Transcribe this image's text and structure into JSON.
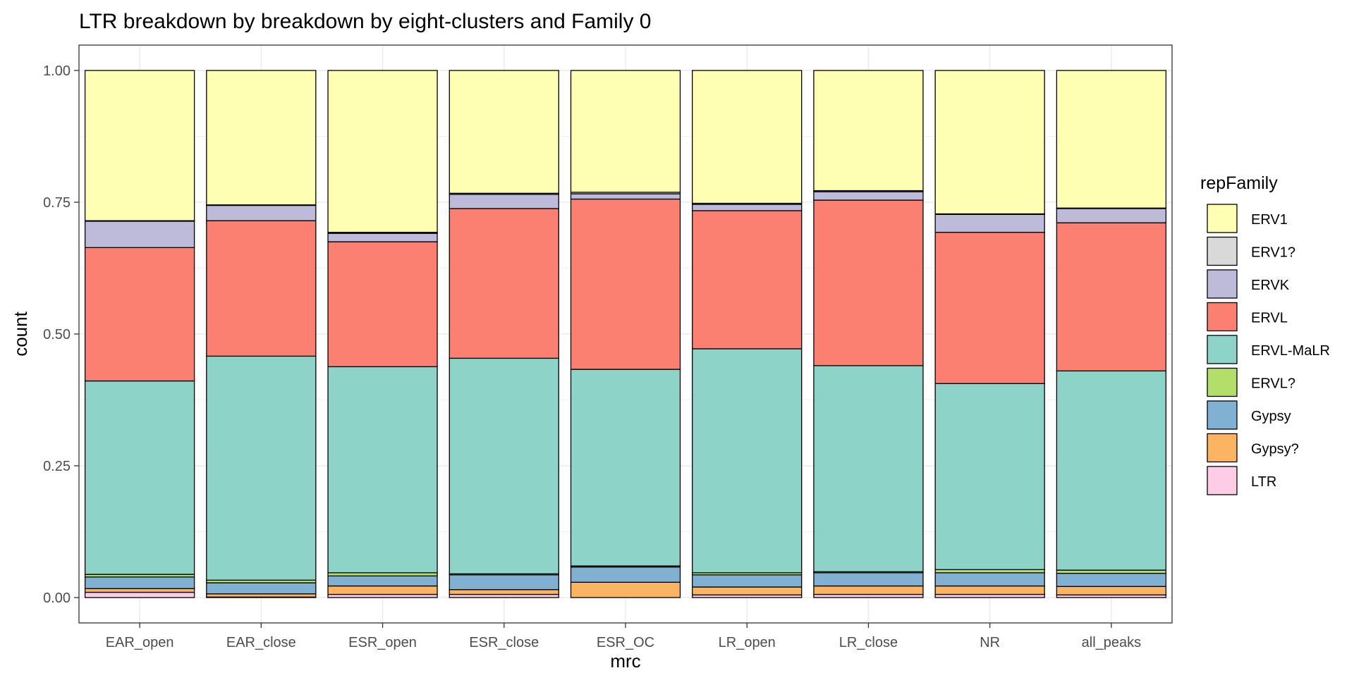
{
  "chart_data": {
    "type": "bar",
    "stacked": true,
    "title": "LTR breakdown by breakdown by eight-clusters and Family 0",
    "xlabel": "mrc",
    "ylabel": "count",
    "ylim": [
      0,
      1
    ],
    "yticks": [
      "0.00",
      "0.25",
      "0.50",
      "0.75",
      "1.00"
    ],
    "ytick_values": [
      0,
      0.25,
      0.5,
      0.75,
      1.0
    ],
    "categories": [
      "EAR_open",
      "EAR_close",
      "ESR_open",
      "ESR_close",
      "ESR_OC",
      "LR_open",
      "LR_close",
      "NR",
      "all_peaks"
    ],
    "grid": true,
    "legend": {
      "title": "repFamily",
      "placement": "right"
    },
    "stack_order_bottom_to_top": [
      "LTR",
      "Gypsy?",
      "Gypsy",
      "ERVL?",
      "ERVL-MaLR",
      "ERVL",
      "ERVK",
      "ERV1?",
      "ERV1"
    ],
    "series": [
      {
        "name": "ERV1",
        "color": "#FFFFB3",
        "values": [
          0.285,
          0.255,
          0.307,
          0.233,
          0.231,
          0.252,
          0.228,
          0.272,
          0.261
        ]
      },
      {
        "name": "ERV1?",
        "color": "#D9D9D9",
        "values": [
          0.001,
          0.001,
          0.002,
          0.002,
          0.003,
          0.002,
          0.002,
          0.001,
          0.001
        ]
      },
      {
        "name": "ERVK",
        "color": "#BEBADA",
        "values": [
          0.05,
          0.029,
          0.016,
          0.027,
          0.01,
          0.012,
          0.016,
          0.034,
          0.027
        ]
      },
      {
        "name": "ERVL",
        "color": "#FB8072",
        "values": [
          0.253,
          0.257,
          0.237,
          0.284,
          0.323,
          0.262,
          0.314,
          0.287,
          0.281
        ]
      },
      {
        "name": "ERVL-MaLR",
        "color": "#8DD3C7",
        "values": [
          0.367,
          0.425,
          0.391,
          0.409,
          0.373,
          0.425,
          0.391,
          0.353,
          0.378
        ]
      },
      {
        "name": "ERVL?",
        "color": "#B3DE69",
        "values": [
          0.005,
          0.005,
          0.006,
          0.002,
          0.002,
          0.004,
          0.002,
          0.006,
          0.006
        ]
      },
      {
        "name": "Gypsy",
        "color": "#80B1D3",
        "values": [
          0.022,
          0.021,
          0.019,
          0.028,
          0.029,
          0.023,
          0.025,
          0.025,
          0.025
        ]
      },
      {
        "name": "Gypsy?",
        "color": "#FDB462",
        "values": [
          0.007,
          0.006,
          0.016,
          0.009,
          0.029,
          0.015,
          0.016,
          0.016,
          0.016
        ]
      },
      {
        "name": "LTR",
        "color": "#FCCDE5",
        "values": [
          0.01,
          0.001,
          0.006,
          0.006,
          0.0,
          0.005,
          0.006,
          0.006,
          0.005
        ]
      }
    ]
  }
}
